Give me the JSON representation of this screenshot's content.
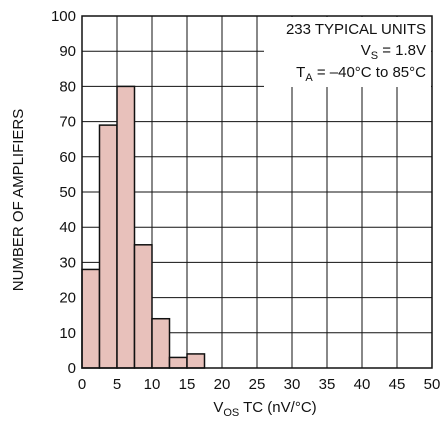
{
  "chart_data": {
    "type": "bar",
    "bin_width": 2.5,
    "bins": [
      {
        "start": 0,
        "end": 2.5,
        "value": 28
      },
      {
        "start": 2.5,
        "end": 5,
        "value": 69
      },
      {
        "start": 5,
        "end": 7.5,
        "value": 80
      },
      {
        "start": 7.5,
        "end": 10,
        "value": 35
      },
      {
        "start": 10,
        "end": 12.5,
        "value": 14
      },
      {
        "start": 12.5,
        "end": 15,
        "value": 3
      },
      {
        "start": 15,
        "end": 17.5,
        "value": 4
      }
    ],
    "xlim": [
      0,
      50
    ],
    "ylim": [
      0,
      100
    ],
    "xticks": [
      "0",
      "5",
      "10",
      "15",
      "20",
      "25",
      "30",
      "35",
      "40",
      "45",
      "50"
    ],
    "yticks": [
      "0",
      "10",
      "20",
      "30",
      "40",
      "50",
      "60",
      "70",
      "80",
      "90",
      "100"
    ],
    "xlabel": {
      "main": "V",
      "sub": "OS",
      "rest": " TC (nV/°C)"
    },
    "ylabel": "NUMBER OF AMPLIFIERS",
    "grid": true,
    "annotation": {
      "line1": "233 TYPICAL UNITS",
      "line2": {
        "main": "V",
        "sub": "S",
        "rest": " = 1.8V"
      },
      "line3": {
        "main": "T",
        "sub": "A",
        "rest": " = –40°C to 85°C"
      },
      "placement": "top-right"
    },
    "bar_color": "#e8c1bb",
    "line_color": "#111111"
  }
}
